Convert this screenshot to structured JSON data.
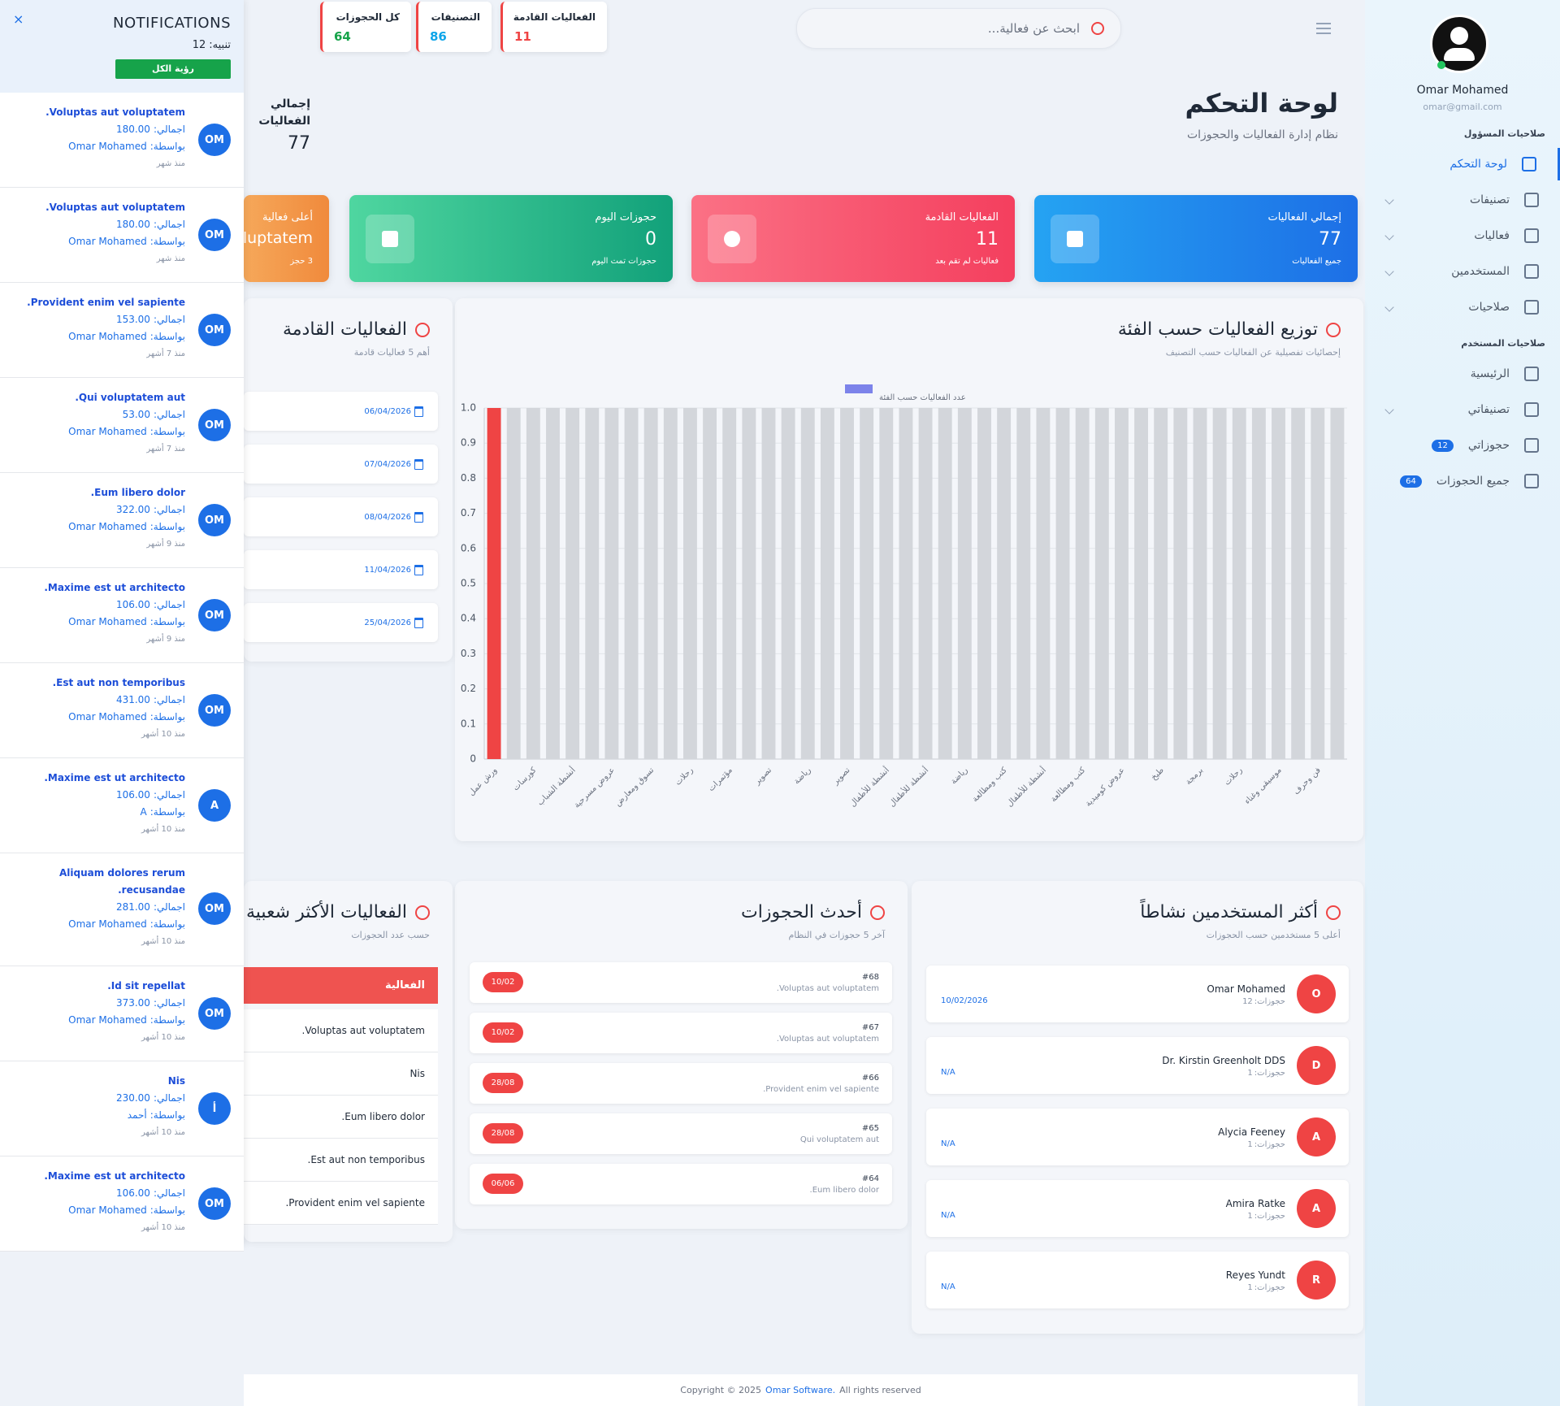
{
  "sidebar": {
    "user_name": "Omar Mohamed",
    "user_email": "omar@gmail.com",
    "sections": [
      {
        "title": "صلاحيات المسؤول",
        "items": [
          {
            "label": "لوحة التحكم",
            "active": true
          },
          {
            "label": "تصنيفات",
            "expandable": true
          },
          {
            "label": "فعاليات",
            "expandable": true
          },
          {
            "label": "المستخدمين",
            "expandable": true
          },
          {
            "label": "صلاحيات",
            "expandable": true
          }
        ]
      },
      {
        "title": "صلاحيات المستخدم",
        "items": [
          {
            "label": "الرئيسية"
          },
          {
            "label": "تصنيفاتي",
            "expandable": true
          },
          {
            "label": "حجوزاتي",
            "badge": 12
          },
          {
            "label": "جميع الحجوزات",
            "badge": 64
          }
        ]
      }
    ]
  },
  "topbar": {
    "search_placeholder": "ابحث عن فعالية...",
    "chips": [
      {
        "label": "كل الحجوزات",
        "value": 64,
        "color": "#16a34a"
      },
      {
        "label": "التصنيفات",
        "value": 86,
        "color": "#0ea5e9"
      },
      {
        "label": "الفعاليات القادمة",
        "value": 11,
        "color": "#ef4444"
      }
    ]
  },
  "header": {
    "title": "لوحة التحكم",
    "subtitle": "نظام إدارة الفعاليات والحجوزات",
    "total_label": "إجمالي الفعاليات",
    "total_value": 77
  },
  "cards": [
    {
      "label": "إجمالي الفعاليات",
      "value": 77,
      "note": "جميع الفعاليات",
      "color": "#1d6fe6",
      "color2": "#25a3f2"
    },
    {
      "label": "الفعاليات القادمة",
      "value": 11,
      "note": "فعاليات لم تقم بعد",
      "color": "#f43f5e",
      "color2": "#fb7185"
    },
    {
      "label": "حجوزات اليوم",
      "value": 0,
      "note": "حجوزات تمت اليوم",
      "color": "#12a17a",
      "color2": "#4fd6a0"
    },
    {
      "label": "أعلى فعالية",
      "value": "Voluptatem",
      "note": "3 حجز",
      "color": "#f08a3c",
      "color2": "#f6a85a"
    }
  ],
  "chart_data": {
    "type": "bar",
    "title": "توزيع الفعاليات حسب الفئة",
    "subtitle": "إحصائيات تفصيلية عن الفعاليات حسب التصنيف",
    "legend": "عدد الفعاليات حسب الفئة",
    "legend_color": "#7c83ea",
    "color": "#ef4444",
    "background_color": "#d3d6db",
    "categories": [
      "ورش عمل",
      null,
      "كورسات",
      null,
      "أنشطة الشباب",
      null,
      "عروض مسرحية",
      null,
      "تسوق ومعارض",
      null,
      "رحلات",
      null,
      "مؤتمرات",
      null,
      "تصوير",
      null,
      "رياضة",
      null,
      "تصوير",
      null,
      "أنشطة للأطفال",
      null,
      "أنشطة للأطفال",
      null,
      "رياضة",
      null,
      "كتب ومطالعة",
      null,
      "أنشطة للأطفال",
      null,
      "كتب ومطالعة",
      null,
      "عروض كوميدية",
      null,
      "طبخ",
      null,
      "برمجة",
      null,
      "رحلات",
      null,
      "موسيقى وغناء",
      null,
      "فن وحرف",
      null
    ],
    "values": [
      1,
      0,
      0,
      0,
      0,
      0,
      0,
      0,
      0,
      0,
      0,
      0,
      0,
      0,
      0,
      0,
      0,
      0,
      0,
      0,
      0,
      0,
      0,
      0,
      0,
      0,
      0,
      0,
      0,
      0,
      0,
      0,
      0,
      0,
      0,
      0,
      0,
      0,
      0,
      0,
      0,
      0,
      0,
      0
    ],
    "ylim": [
      0,
      1
    ],
    "yticks": [
      0,
      0.1,
      0.2,
      0.3,
      0.4,
      0.5,
      0.6,
      0.7,
      0.8,
      0.9,
      {
        "value": 1,
        "label": "1.0"
      }
    ],
    "grid": true
  },
  "upcoming": {
    "title": "الفعاليات القادمة",
    "subtitle": "أهم 5 فعاليات قادمة",
    "dates": [
      "06/04/2026",
      "07/04/2026",
      "08/04/2026",
      "11/04/2026",
      "25/04/2026"
    ]
  },
  "active_users": {
    "title": "أكثر المستخدمين نشاطاً",
    "subtitle": "أعلى 5 مستخدمين حسب الحجوزات",
    "bookings_label": "حجوزات:",
    "users": [
      {
        "name": "Omar Mohamed",
        "bookings": 12,
        "date": "10/02/2026",
        "initial": "O"
      },
      {
        "name": "Dr. Kirstin Greenholt DDS",
        "bookings": 1,
        "date": "N/A",
        "initial": "D"
      },
      {
        "name": "Alycia Feeney",
        "bookings": 1,
        "date": "N/A",
        "initial": "A"
      },
      {
        "name": "Amira Ratke",
        "bookings": 1,
        "date": "N/A",
        "initial": "A"
      },
      {
        "name": "Reyes Yundt",
        "bookings": 1,
        "date": "N/A",
        "initial": "R"
      }
    ]
  },
  "latest_bookings": {
    "title": "أحدث الحجوزات",
    "subtitle": "آخر 5 حجوزات في النظام",
    "items": [
      {
        "id": "#68",
        "event": "Voluptas aut voluptatem.",
        "date": "10/02"
      },
      {
        "id": "#67",
        "event": "Voluptas aut voluptatem.",
        "date": "10/02"
      },
      {
        "id": "#66",
        "event": "Provident enim vel sapiente.",
        "date": "28/08"
      },
      {
        "id": "#65",
        "event": "Qui voluptatem aut",
        "date": "28/08"
      },
      {
        "id": "#64",
        "event": "Eum libero dolor.",
        "date": "06/06"
      }
    ]
  },
  "popular": {
    "title": "الفعاليات الأكثر شعبية",
    "subtitle": "حسب عدد الحجوزات",
    "header": "الفعالية",
    "rows": [
      "Voluptas aut voluptatem.",
      "Nis",
      "Eum libero dolor.",
      "Est aut non temporibus.",
      "Provident enim vel sapiente."
    ]
  },
  "footer": {
    "copyright": "Copyright © 2025",
    "brand": "Omar Software.",
    "rights": "All rights reserved"
  },
  "notifications": {
    "title": "NOTIFICATIONS",
    "count_label": "تنبيه:",
    "count": 12,
    "view_all": "رؤية الكل",
    "total_label": "اجمالي:",
    "by_label": "بواسطة:",
    "items": [
      {
        "title": "Voluptas aut voluptatem.",
        "total": "180.00",
        "by": "Omar Mohamed",
        "time": "منذ شهر",
        "initials": "OM"
      },
      {
        "title": "Voluptas aut voluptatem.",
        "total": "180.00",
        "by": "Omar Mohamed",
        "time": "منذ شهر",
        "initials": "OM"
      },
      {
        "title": "Provident enim vel sapiente.",
        "total": "153.00",
        "by": "Omar Mohamed",
        "time": "منذ 7 أشهر",
        "initials": "OM"
      },
      {
        "title": "Qui voluptatem aut.",
        "total": "53.00",
        "by": "Omar Mohamed",
        "time": "منذ 7 أشهر",
        "initials": "OM"
      },
      {
        "title": "Eum libero dolor.",
        "total": "322.00",
        "by": "Omar Mohamed",
        "time": "منذ 9 أشهر",
        "initials": "OM"
      },
      {
        "title": "Maxime est ut architecto.",
        "total": "106.00",
        "by": "Omar Mohamed",
        "time": "منذ 9 أشهر",
        "initials": "OM"
      },
      {
        "title": "Est aut non temporibus.",
        "total": "431.00",
        "by": "Omar Mohamed",
        "time": "منذ 10 أشهر",
        "initials": "OM"
      },
      {
        "title": "Maxime est ut architecto.",
        "total": "106.00",
        "by": "A",
        "time": "منذ 10 أشهر",
        "initials": "A"
      },
      {
        "title": "Aliquam dolores rerum recusandae.",
        "total": "281.00",
        "by": "Omar Mohamed",
        "time": "منذ 10 أشهر",
        "initials": "OM"
      },
      {
        "title": "Id sit repellat.",
        "total": "373.00",
        "by": "Omar Mohamed",
        "time": "منذ 10 أشهر",
        "initials": "OM"
      },
      {
        "title": "Nis",
        "total": "230.00",
        "by": "أحمد",
        "time": "منذ 10 أشهر",
        "initials": "أ"
      },
      {
        "title": "Maxime est ut architecto.",
        "total": "106.00",
        "by": "Omar Mohamed",
        "time": "منذ 10 أشهر",
        "initials": "OM"
      }
    ]
  }
}
